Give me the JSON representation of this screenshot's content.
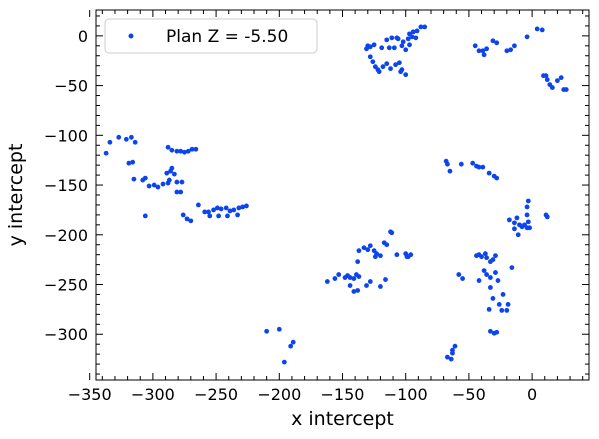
{
  "colors": {
    "points": "#0c44ee",
    "axes": "#000000",
    "legend_border": "#cccccc"
  },
  "chart_data": {
    "type": "scatter",
    "title": "",
    "xlabel": "x intercept",
    "ylabel": "y intercept",
    "xlim": [
      -345,
      45
    ],
    "ylim": [
      -346,
      26
    ],
    "xticks": [
      -350,
      -300,
      -250,
      -200,
      -150,
      -100,
      -50,
      0
    ],
    "xtick_labels": [
      "−350",
      "−300",
      "−250",
      "−200",
      "−150",
      "−100",
      "−50",
      "0"
    ],
    "yticks": [
      0,
      -50,
      -100,
      -150,
      -200,
      -250,
      -300
    ],
    "ytick_labels": [
      "0",
      "−50",
      "−100",
      "−150",
      "−200",
      "−250",
      "−300"
    ],
    "grid": false,
    "legend_position": "upper left",
    "series": [
      {
        "name": "Plan Z = -5.50",
        "points": [
          [
            -337,
            -118
          ],
          [
            -334,
            -107
          ],
          [
            -327,
            -102
          ],
          [
            -321,
            -104
          ],
          [
            -317,
            -102
          ],
          [
            -314,
            -107
          ],
          [
            -319,
            -128
          ],
          [
            -316,
            -127
          ],
          [
            -315,
            -144
          ],
          [
            -308,
            -145
          ],
          [
            -306,
            -143
          ],
          [
            -303,
            -151
          ],
          [
            -299,
            -150
          ],
          [
            -296,
            -152
          ],
          [
            -292,
            -149
          ],
          [
            -288,
            -148
          ],
          [
            -306,
            -181
          ],
          [
            -288,
            -112
          ],
          [
            -285,
            -115
          ],
          [
            -281,
            -116
          ],
          [
            -278,
            -116
          ],
          [
            -275,
            -117
          ],
          [
            -272,
            -116
          ],
          [
            -269,
            -114
          ],
          [
            -266,
            -114
          ],
          [
            -289,
            -138
          ],
          [
            -286,
            -136
          ],
          [
            -283,
            -139
          ],
          [
            -287,
            -145
          ],
          [
            -281,
            -147
          ],
          [
            -277,
            -147
          ],
          [
            -281,
            -157
          ],
          [
            -278,
            -157
          ],
          [
            -285,
            -133
          ],
          [
            -276,
            -180
          ],
          [
            -273,
            -184
          ],
          [
            -270,
            -186
          ],
          [
            -264,
            -170
          ],
          [
            -259,
            -177
          ],
          [
            -256,
            -177
          ],
          [
            -252,
            -175
          ],
          [
            -249,
            -173
          ],
          [
            -246,
            -174
          ],
          [
            -242,
            -173
          ],
          [
            -239,
            -176
          ],
          [
            -236,
            -175
          ],
          [
            -232,
            -173
          ],
          [
            -229,
            -172
          ],
          [
            -226,
            -171
          ],
          [
            -255,
            -181
          ],
          [
            -248,
            -181
          ],
          [
            -241,
            -181
          ],
          [
            -233,
            -180
          ],
          [
            -210,
            -297
          ],
          [
            -200,
            -295
          ],
          [
            -196,
            -328
          ],
          [
            -191,
            -312
          ],
          [
            -189,
            -308
          ],
          [
            -162,
            -247
          ],
          [
            -156,
            -244
          ],
          [
            -153,
            -240
          ],
          [
            -148,
            -243
          ],
          [
            -146,
            -241
          ],
          [
            -144,
            -243
          ],
          [
            -141,
            -244
          ],
          [
            -139,
            -240
          ],
          [
            -137,
            -242
          ],
          [
            -144,
            -251
          ],
          [
            -141,
            -257
          ],
          [
            -138,
            -256
          ],
          [
            -138,
            -227
          ],
          [
            -137,
            -216
          ],
          [
            -133,
            -213
          ],
          [
            -130,
            -215
          ],
          [
            -128,
            -211
          ],
          [
            -125,
            -216
          ],
          [
            -123,
            -219
          ],
          [
            -120,
            -221
          ],
          [
            -124,
            -222
          ],
          [
            -117,
            -208
          ],
          [
            -115,
            -210
          ],
          [
            -112,
            -197
          ],
          [
            -111,
            -198
          ],
          [
            -107,
            -220
          ],
          [
            -100,
            -219
          ],
          [
            -99,
            -222
          ],
          [
            -98,
            -222
          ],
          [
            -96,
            -220
          ],
          [
            -120,
            -252
          ],
          [
            -116,
            -245
          ],
          [
            -131,
            -251
          ],
          [
            -128,
            -247
          ],
          [
            -130,
            -10
          ],
          [
            -128,
            -11
          ],
          [
            -131,
            -13
          ],
          [
            -125,
            -9
          ],
          [
            -119,
            -12
          ],
          [
            -113,
            -12
          ],
          [
            -109,
            -12
          ],
          [
            -115,
            -4
          ],
          [
            -111,
            -2
          ],
          [
            -106,
            -3
          ],
          [
            -102,
            -6
          ],
          [
            -98,
            -3
          ],
          [
            -95,
            -1
          ],
          [
            -92,
            -2
          ],
          [
            -88,
            9
          ],
          [
            -85,
            9
          ],
          [
            -97,
            2
          ],
          [
            -94,
            4
          ],
          [
            -91,
            5
          ],
          [
            -107,
            -2
          ],
          [
            -103,
            -10
          ],
          [
            -100,
            -14
          ],
          [
            -97,
            -9
          ],
          [
            -128,
            -21
          ],
          [
            -126,
            -26
          ],
          [
            -124,
            -31
          ],
          [
            -121,
            -36
          ],
          [
            -118,
            -31
          ],
          [
            -115,
            -28
          ],
          [
            -112,
            -33
          ],
          [
            -108,
            -29
          ],
          [
            -105,
            -27
          ],
          [
            -103,
            -34
          ],
          [
            -100,
            -39
          ],
          [
            -122,
            -34
          ],
          [
            -104,
            -36
          ],
          [
            -68,
            -126
          ],
          [
            -67,
            -129
          ],
          [
            -65,
            -136
          ],
          [
            -56,
            -129
          ],
          [
            -47,
            -128
          ],
          [
            -44,
            -131
          ],
          [
            -42,
            -132
          ],
          [
            -39,
            -132
          ],
          [
            -34,
            -138
          ],
          [
            -30,
            -141
          ],
          [
            -28,
            -143
          ],
          [
            -67,
            -323
          ],
          [
            -64,
            -325
          ],
          [
            -63,
            -316
          ],
          [
            -63,
            -319
          ],
          [
            -61,
            -312
          ],
          [
            -58,
            -240
          ],
          [
            -55,
            -244
          ],
          [
            -44,
            -221
          ],
          [
            -42,
            -220
          ],
          [
            -40,
            -222
          ],
          [
            -37,
            -219
          ],
          [
            -33,
            -227
          ],
          [
            -31,
            -225
          ],
          [
            -29,
            -221
          ],
          [
            -38,
            -236
          ],
          [
            -36,
            -240
          ],
          [
            -33,
            -243
          ],
          [
            -29,
            -238
          ],
          [
            -27,
            -246
          ],
          [
            -42,
            -246
          ],
          [
            -33,
            -253
          ],
          [
            -31,
            -264
          ],
          [
            -34,
            -275
          ],
          [
            -26,
            -270
          ],
          [
            -24,
            -276
          ],
          [
            -20,
            -276
          ],
          [
            -19,
            -270
          ],
          [
            -16,
            -233
          ],
          [
            -23,
            -260
          ],
          [
            -33,
            -297
          ],
          [
            -30,
            -299
          ],
          [
            -28,
            -298
          ],
          [
            -36,
            -223
          ],
          [
            -45,
            -10
          ],
          [
            -42,
            -15
          ],
          [
            -39,
            -15
          ],
          [
            -38,
            -19
          ],
          [
            -36,
            -13
          ],
          [
            -31,
            -5
          ],
          [
            -28,
            -7
          ],
          [
            -20,
            -15
          ],
          [
            -17,
            -14
          ],
          [
            -14,
            -10
          ],
          [
            -4,
            -1
          ],
          [
            -18,
            -185
          ],
          [
            -14,
            -188
          ],
          [
            -12,
            -183
          ],
          [
            -10,
            -190
          ],
          [
            -8,
            -192
          ],
          [
            -6,
            -190
          ],
          [
            -4,
            -193
          ],
          [
            -2,
            -193
          ],
          [
            -14,
            -194
          ],
          [
            -11,
            -200
          ],
          [
            -4,
            -172
          ],
          [
            -3,
            -166
          ],
          [
            -4,
            -180
          ],
          [
            -3,
            -187
          ],
          [
            11,
            -180
          ],
          [
            12,
            -182
          ],
          [
            4,
            7
          ],
          [
            8,
            6
          ],
          [
            9,
            -40
          ],
          [
            11,
            -40
          ],
          [
            12,
            -44
          ],
          [
            14,
            -49
          ],
          [
            16,
            -52
          ],
          [
            20,
            -45
          ],
          [
            23,
            -42
          ],
          [
            25,
            -54
          ],
          [
            27,
            -54
          ]
        ]
      }
    ]
  }
}
